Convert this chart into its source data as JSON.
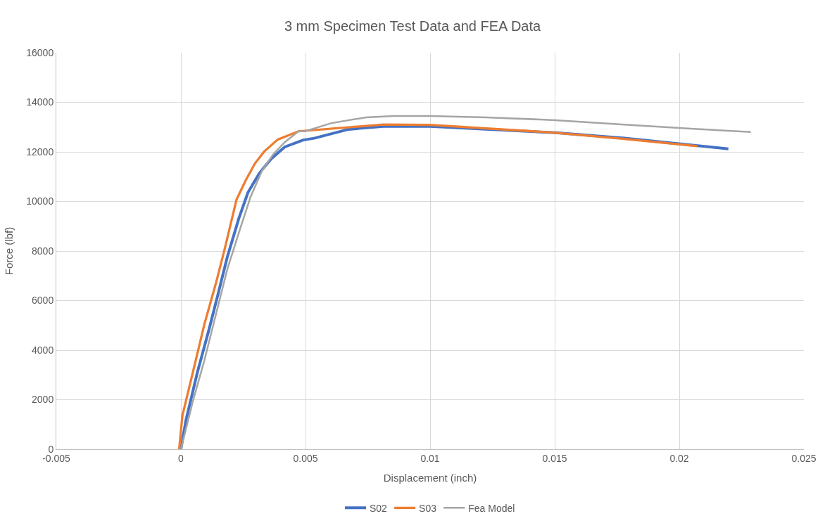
{
  "chart_data": {
    "type": "line",
    "title": "3 mm Specimen Test Data and FEA Data",
    "xlabel": "Displacement (inch)",
    "ylabel": "Force (lbf)",
    "xlim": [
      -0.005,
      0.025
    ],
    "xticks": [
      -0.005,
      0,
      0.005,
      0.01,
      0.015,
      0.02,
      0.025
    ],
    "ylim": [
      0,
      16000
    ],
    "yticks": [
      0,
      2000,
      4000,
      6000,
      8000,
      10000,
      12000,
      14000,
      16000
    ],
    "grid": true,
    "legend": "bottom",
    "marker": "none",
    "line_style": "solid",
    "series": [
      {
        "name": "S02",
        "color": "#4472c4",
        "x": [
          0,
          0.0002,
          0.00066,
          0.00113,
          0.0015,
          0.00186,
          0.00232,
          0.00269,
          0.00315,
          0.00362,
          0.00417,
          0.00491,
          0.00535,
          0.00673,
          0.00812,
          0.01,
          0.01504,
          0.0178,
          0.02197
        ],
        "values": [
          0,
          1160,
          3100,
          4840,
          6300,
          7750,
          9300,
          10360,
          11140,
          11720,
          12200,
          12480,
          12550,
          12910,
          13030,
          13030,
          12770,
          12550,
          12120
        ]
      },
      {
        "name": "S03",
        "color": "#ed7d31",
        "x": [
          -7e-05,
          6e-05,
          0.00048,
          0.00094,
          0.0014,
          0.00177,
          0.00223,
          0.0026,
          0.00297,
          0.00334,
          0.00389,
          0.00472,
          0.00812,
          0.01,
          0.01504,
          0.0178,
          0.02072
        ],
        "values": [
          0,
          1360,
          3100,
          5040,
          6680,
          8130,
          10070,
          10850,
          11530,
          12010,
          12500,
          12830,
          13100,
          13090,
          12770,
          12520,
          12230
        ]
      },
      {
        "name": "Fea Model",
        "color": "#a5a5a5",
        "x": [
          0,
          0.00048,
          0.00094,
          0.0014,
          0.00186,
          0.00232,
          0.00279,
          0.00325,
          0.00371,
          0.00417,
          0.00472,
          0.005,
          0.00604,
          0.00742,
          0.00853,
          0.01,
          0.01227,
          0.01504,
          0.0178,
          0.02058,
          0.02287
        ],
        "values": [
          0,
          1940,
          3580,
          5420,
          7260,
          8720,
          10170,
          11230,
          11910,
          12390,
          12830,
          12840,
          13160,
          13390,
          13450,
          13450,
          13390,
          13280,
          13100,
          12930,
          12800
        ]
      }
    ]
  }
}
